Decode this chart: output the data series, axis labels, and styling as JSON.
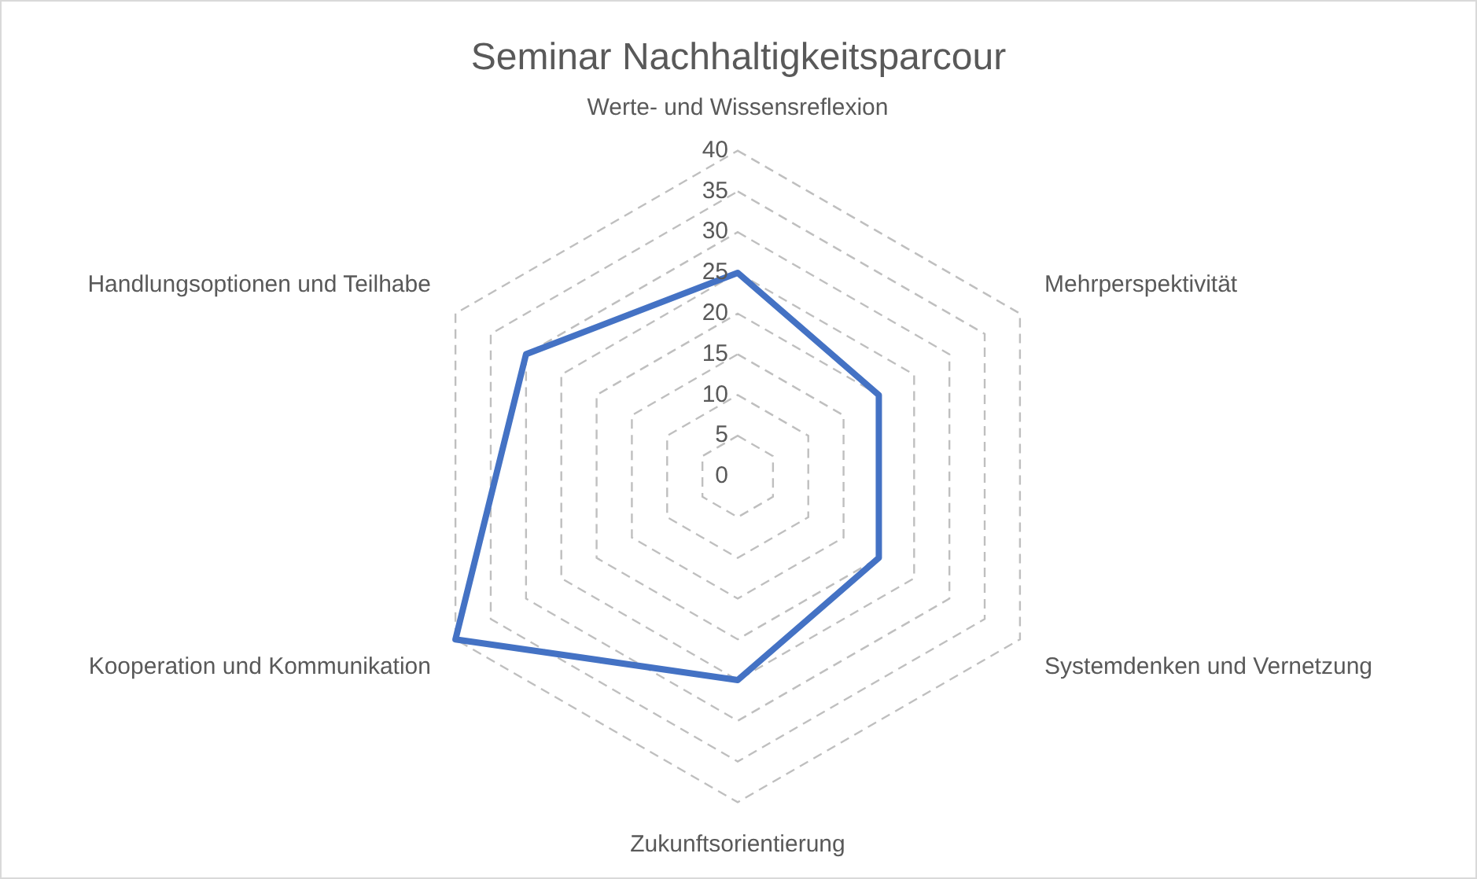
{
  "chart_data": {
    "type": "radar",
    "title": "Seminar Nachhaltigkeitsparcour",
    "categories": [
      "Werte- und Wissensreflexion",
      "Mehrperspektivität",
      "Systemdenken und Vernetzung",
      "Zukunftsorientierung",
      "Kooperation und Kommunikation",
      "Handlungsoptionen und Teilhabe"
    ],
    "series": [
      {
        "color": "#4472c4",
        "values": [
          25,
          20,
          20,
          25,
          40,
          30
        ]
      }
    ],
    "ylim": [
      0,
      40
    ],
    "yticks": [
      0,
      5,
      10,
      15,
      20,
      25,
      30,
      35,
      40
    ],
    "grid": true,
    "legend": false,
    "marker": "none",
    "line_style": "solid"
  }
}
